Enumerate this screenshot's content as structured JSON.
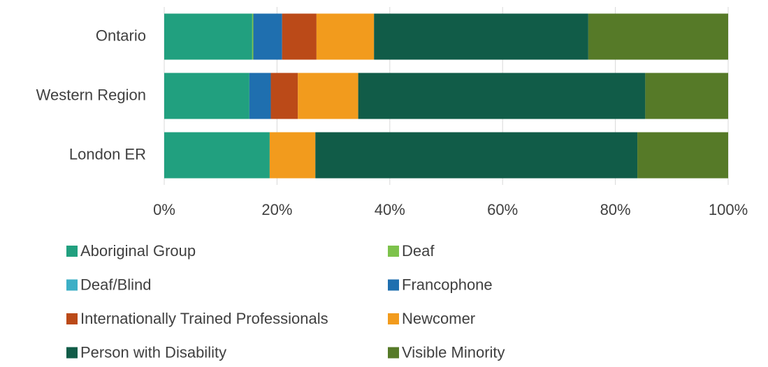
{
  "chart_data": {
    "type": "stacked_bar_horizontal",
    "categories": [
      "Ontario",
      "Western Region",
      "London ER"
    ],
    "series": [
      {
        "name": "Aboriginal Group",
        "color": "#21a07f",
        "values": [
          15.6,
          15.1,
          18.7
        ]
      },
      {
        "name": "Deaf",
        "color": "#7dc24b",
        "values": [
          0.2,
          0,
          0
        ]
      },
      {
        "name": "Deaf/Blind",
        "color": "#3cafc6",
        "values": [
          0,
          0,
          0
        ]
      },
      {
        "name": "Francophone",
        "color": "#1f6faf",
        "values": [
          5.1,
          3.8,
          0
        ]
      },
      {
        "name": "Internationally Trained Professionals",
        "color": "#bb4a18",
        "values": [
          6.1,
          4.8,
          0
        ]
      },
      {
        "name": "Newcomer",
        "color": "#f29b1d",
        "values": [
          10.2,
          10.7,
          8.1
        ]
      },
      {
        "name": "Person with Disability",
        "color": "#115c48",
        "values": [
          38.0,
          50.9,
          57.1
        ]
      },
      {
        "name": "Visible Minority",
        "color": "#567a28",
        "values": [
          24.8,
          14.7,
          16.1
        ]
      }
    ],
    "xlim": [
      0,
      100
    ],
    "xticks": [
      {
        "value": 0,
        "label": "0%"
      },
      {
        "value": 20,
        "label": "20%"
      },
      {
        "value": 40,
        "label": "40%"
      },
      {
        "value": 60,
        "label": "60%"
      },
      {
        "value": 80,
        "label": "80%"
      },
      {
        "value": 100,
        "label": "100%"
      }
    ],
    "grid": true
  }
}
